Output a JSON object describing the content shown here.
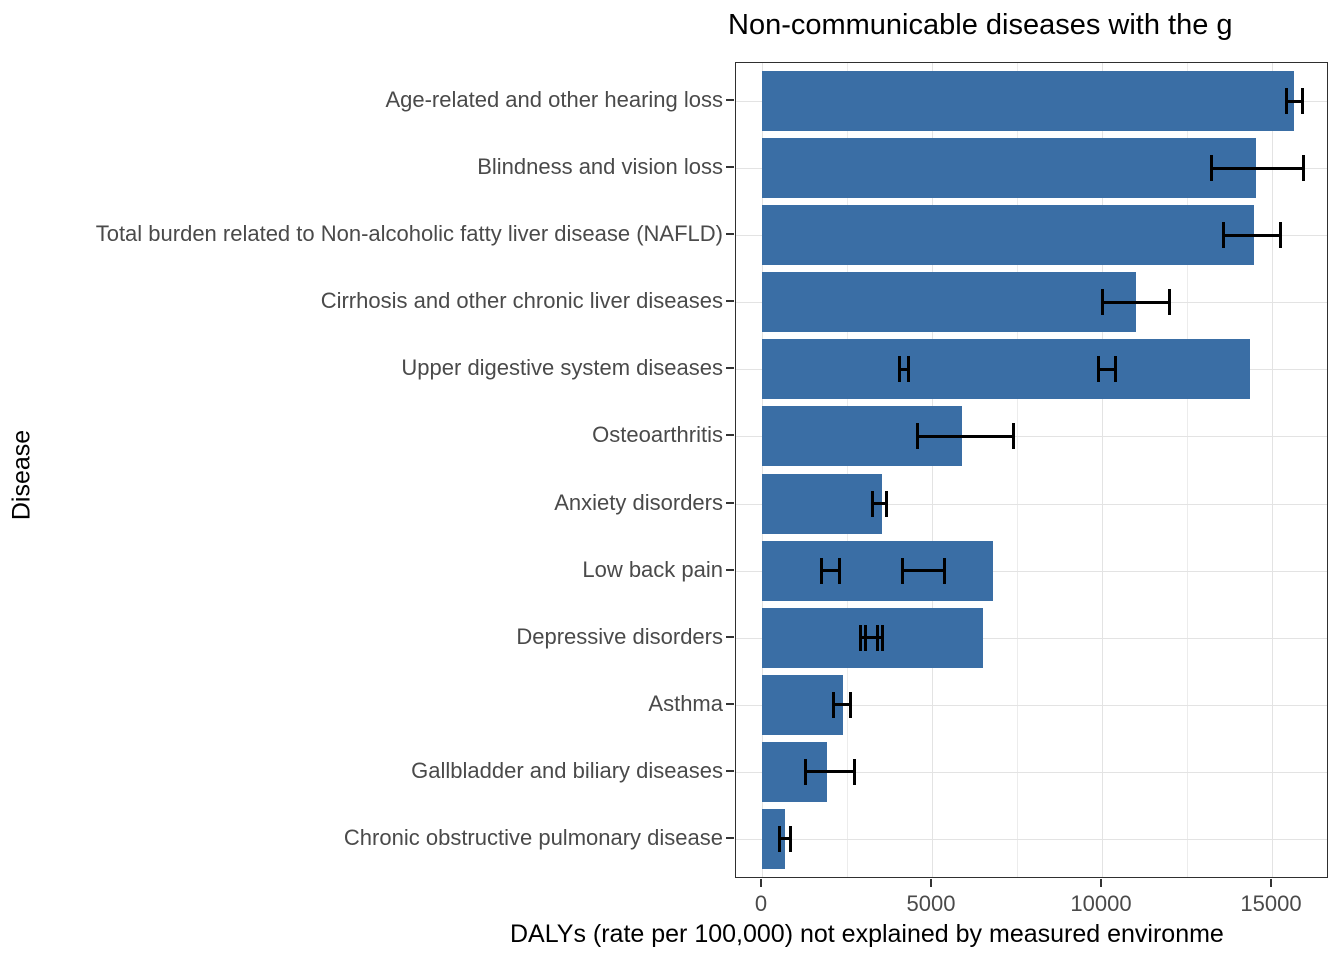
{
  "chart_data": {
    "type": "bar",
    "orientation": "horizontal",
    "title": "Non-communicable diseases with the g",
    "xlabel": "DALYs (rate per 100,000) not explained by measured environme",
    "ylabel": "Disease",
    "x_ticks": [
      0,
      5000,
      10000,
      15000
    ],
    "x_minor_gridlines": [
      2500,
      7500,
      12500
    ],
    "xlim": [
      0,
      16700
    ],
    "grid": true,
    "legend": "none",
    "bar_color": "#3A6EA5",
    "error_bar_color": "#000000",
    "bars": [
      {
        "label": "Age-related and other hearing loss",
        "value": 15650,
        "error_bars": [
          {
            "low": 15400,
            "high": 15900
          }
        ]
      },
      {
        "label": "Blindness and vision loss",
        "value": 14530,
        "error_bars": [
          {
            "low": 13200,
            "high": 15950
          }
        ]
      },
      {
        "label": "Total burden related to Non-alcoholic fatty liver disease (NAFLD)",
        "value": 14460,
        "error_bars": [
          {
            "low": 13550,
            "high": 15270
          }
        ]
      },
      {
        "label": "Cirrhosis and other chronic liver diseases",
        "value": 11000,
        "error_bars": [
          {
            "low": 10000,
            "high": 12000
          }
        ]
      },
      {
        "label": "Upper digestive system diseases",
        "value": 14360,
        "error_bars": [
          {
            "low": 4030,
            "high": 4310
          },
          {
            "low": 9870,
            "high": 10410
          }
        ]
      },
      {
        "label": "Osteoarthritis",
        "value": 5890,
        "error_bars": [
          {
            "low": 4570,
            "high": 7420
          }
        ]
      },
      {
        "label": "Anxiety disorders",
        "value": 3530,
        "error_bars": [
          {
            "low": 3240,
            "high": 3690
          }
        ]
      },
      {
        "label": "Low back pain",
        "value": 6780,
        "error_bars": [
          {
            "low": 1740,
            "high": 2290
          },
          {
            "low": 4110,
            "high": 5380
          }
        ]
      },
      {
        "label": "Depressive disorders",
        "value": 6500,
        "error_bars": [
          {
            "low": 2880,
            "high": 3400
          },
          {
            "low": 3040,
            "high": 3550
          }
        ]
      },
      {
        "label": "Asthma",
        "value": 2370,
        "error_bars": [
          {
            "low": 2100,
            "high": 2620
          }
        ]
      },
      {
        "label": "Gallbladder and biliary diseases",
        "value": 1920,
        "error_bars": [
          {
            "low": 1270,
            "high": 2740
          }
        ]
      },
      {
        "label": "Chronic obstructive pulmonary disease",
        "value": 680,
        "error_bars": [
          {
            "low": 490,
            "high": 840
          }
        ]
      }
    ]
  }
}
